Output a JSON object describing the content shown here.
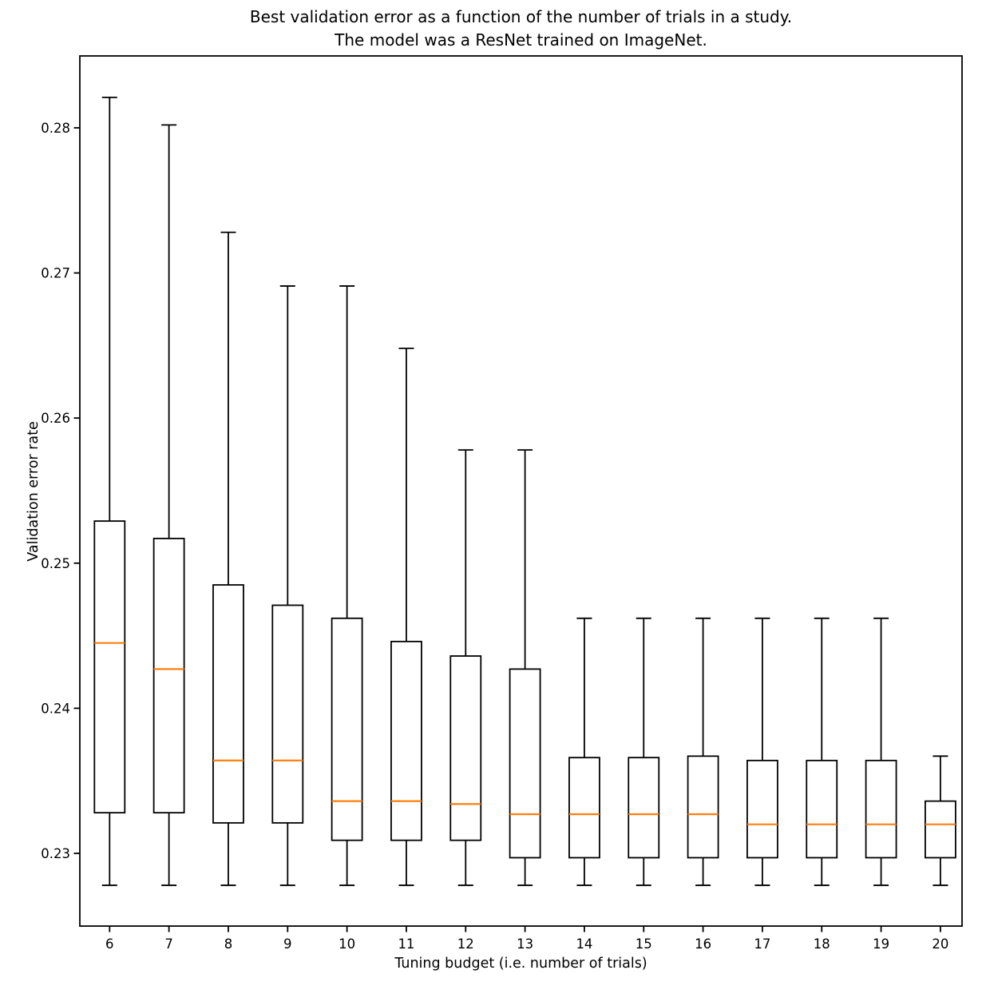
{
  "figure": {
    "title_line1": "Best validation error as a function of the number of trials in a study.",
    "title_line2": "The model was a ResNet trained on ImageNet.",
    "background_color": "#ffffff"
  },
  "chart_data": {
    "type": "boxplot",
    "title": "Best validation error as a function of the number of trials in a study.\nThe model was a ResNet trained on ImageNet.",
    "xlabel": "Tuning budget (i.e. number of trials)",
    "ylabel": "Validation error rate",
    "categories": [
      6,
      7,
      8,
      9,
      10,
      11,
      12,
      13,
      14,
      15,
      16,
      17,
      18,
      19,
      20
    ],
    "x_tick_labels": [
      "6",
      "7",
      "8",
      "9",
      "10",
      "11",
      "12",
      "13",
      "14",
      "15",
      "16",
      "17",
      "18",
      "19",
      "20"
    ],
    "y_ticks": [
      0.23,
      0.24,
      0.25,
      0.26,
      0.27,
      0.28
    ],
    "y_tick_labels": [
      "0.23",
      "0.24",
      "0.25",
      "0.26",
      "0.27",
      "0.28"
    ],
    "ylim": [
      0.225,
      0.285
    ],
    "grid": false,
    "legend": null,
    "box_color": "#000000",
    "median_color": "#ff7f0e",
    "boxes": [
      {
        "x": 6,
        "whisker_low": 0.2278,
        "q1": 0.2328,
        "median": 0.2445,
        "q3": 0.2529,
        "whisker_high": 0.2821
      },
      {
        "x": 7,
        "whisker_low": 0.2278,
        "q1": 0.2328,
        "median": 0.2427,
        "q3": 0.2517,
        "whisker_high": 0.2802
      },
      {
        "x": 8,
        "whisker_low": 0.2278,
        "q1": 0.2321,
        "median": 0.2364,
        "q3": 0.2485,
        "whisker_high": 0.2728
      },
      {
        "x": 9,
        "whisker_low": 0.2278,
        "q1": 0.2321,
        "median": 0.2364,
        "q3": 0.2471,
        "whisker_high": 0.2691
      },
      {
        "x": 10,
        "whisker_low": 0.2278,
        "q1": 0.2309,
        "median": 0.2336,
        "q3": 0.2462,
        "whisker_high": 0.2691
      },
      {
        "x": 11,
        "whisker_low": 0.2278,
        "q1": 0.2309,
        "median": 0.2336,
        "q3": 0.2446,
        "whisker_high": 0.2648
      },
      {
        "x": 12,
        "whisker_low": 0.2278,
        "q1": 0.2309,
        "median": 0.2334,
        "q3": 0.2436,
        "whisker_high": 0.2578
      },
      {
        "x": 13,
        "whisker_low": 0.2278,
        "q1": 0.2297,
        "median": 0.2327,
        "q3": 0.2427,
        "whisker_high": 0.2578
      },
      {
        "x": 14,
        "whisker_low": 0.2278,
        "q1": 0.2297,
        "median": 0.2327,
        "q3": 0.2366,
        "whisker_high": 0.2462
      },
      {
        "x": 15,
        "whisker_low": 0.2278,
        "q1": 0.2297,
        "median": 0.2327,
        "q3": 0.2366,
        "whisker_high": 0.2462
      },
      {
        "x": 16,
        "whisker_low": 0.2278,
        "q1": 0.2297,
        "median": 0.2327,
        "q3": 0.2367,
        "whisker_high": 0.2462
      },
      {
        "x": 17,
        "whisker_low": 0.2278,
        "q1": 0.2297,
        "median": 0.232,
        "q3": 0.2364,
        "whisker_high": 0.2462
      },
      {
        "x": 18,
        "whisker_low": 0.2278,
        "q1": 0.2297,
        "median": 0.232,
        "q3": 0.2364,
        "whisker_high": 0.2462
      },
      {
        "x": 19,
        "whisker_low": 0.2278,
        "q1": 0.2297,
        "median": 0.232,
        "q3": 0.2364,
        "whisker_high": 0.2462
      },
      {
        "x": 20,
        "whisker_low": 0.2278,
        "q1": 0.2297,
        "median": 0.232,
        "q3": 0.2336,
        "whisker_high": 0.2367
      }
    ]
  }
}
